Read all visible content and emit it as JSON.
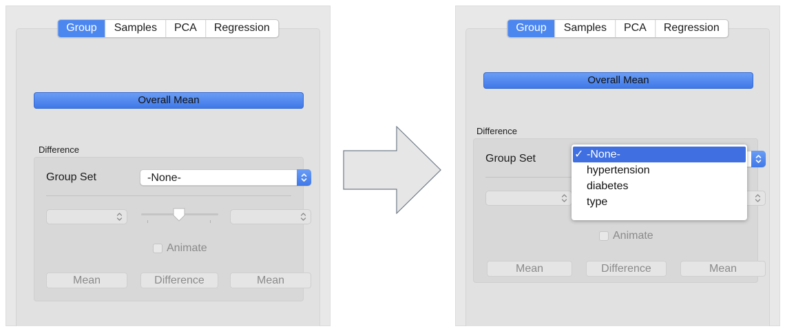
{
  "tabs": [
    "Group",
    "Samples",
    "PCA",
    "Regression"
  ],
  "overall_mean_label": "Overall Mean",
  "difference_section": {
    "title": "Difference",
    "group_set_label": "Group Set",
    "group_set_value": "-None-",
    "animate_label": "Animate",
    "buttons": {
      "mean_left": "Mean",
      "difference": "Difference",
      "mean_right": "Mean"
    }
  },
  "menu": {
    "check_glyph": "✓",
    "options": [
      "-None-",
      "hypertension",
      "diabetes",
      "type"
    ],
    "selected": "-None-"
  },
  "colors": {
    "accent": "#4c87f0",
    "menu_highlight": "#3f6fe0",
    "disabled_text": "#8a8a8a"
  },
  "icons": {
    "popup_arrow": "up-down-chevron-icon",
    "stepper": "up-down-chevron-icon",
    "slider_knob": "slider-knob-icon",
    "transition": "right-arrow-icon"
  }
}
